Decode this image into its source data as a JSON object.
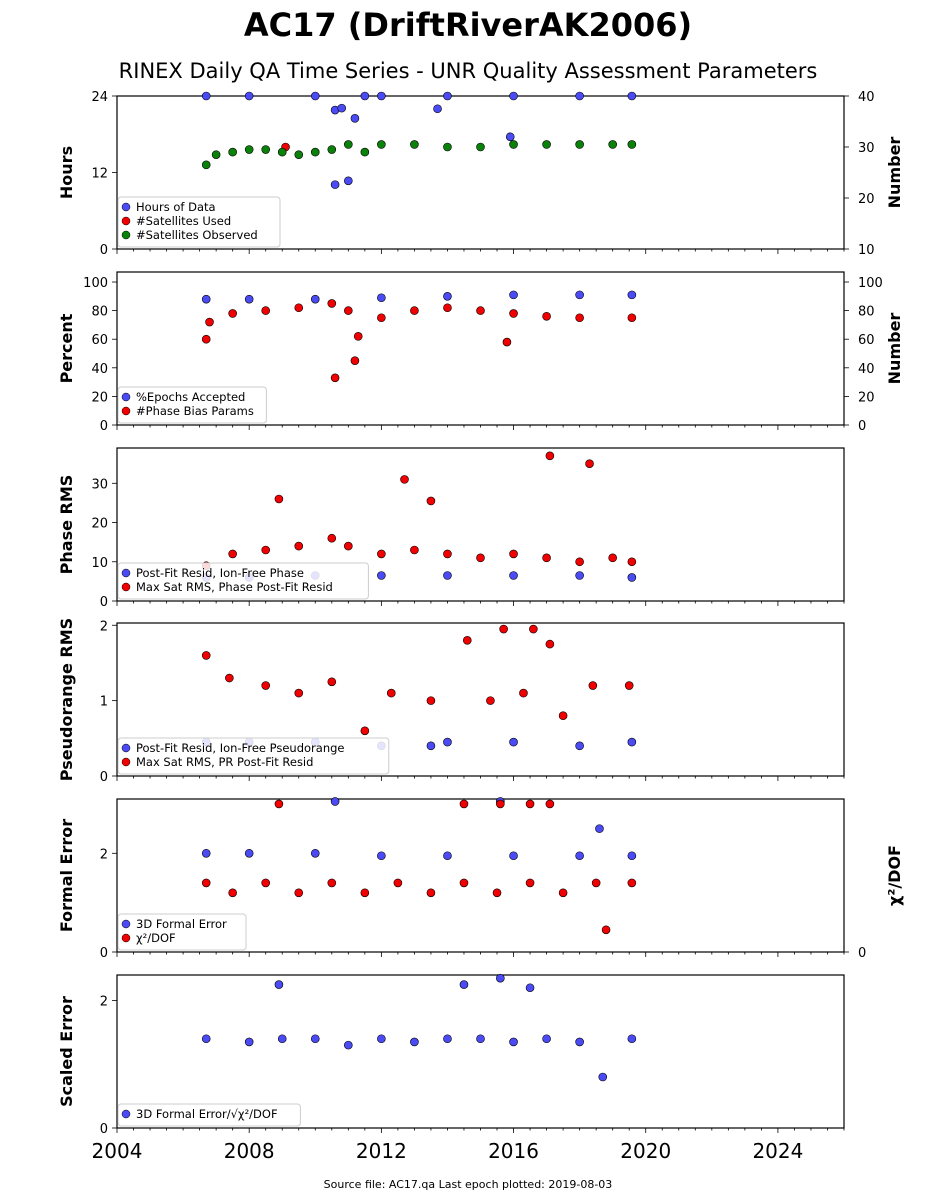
{
  "title": "AC17 (DriftRiverAK2006)",
  "subtitle": "RINEX Daily QA Time Series - UNR Quality Assessment Parameters",
  "footer": "Source file: AC17.qa Last epoch plotted: 2019-08-03",
  "colors": {
    "blue": "#4b4bf5",
    "red": "#f00000",
    "green": "#0a820a",
    "edge": "#000000"
  },
  "x_axis": {
    "range": [
      2004.0,
      2026.0
    ],
    "ticks": [
      "2004",
      "2008",
      "2012",
      "2016",
      "2020",
      "2024"
    ]
  },
  "chart_data": [
    {
      "type": "scatter",
      "ylabel": "Hours",
      "ylim": [
        0,
        24
      ],
      "yticks": [
        "0",
        "12",
        "24"
      ],
      "ylabel_right": "Number",
      "ylim_right": [
        10,
        40
      ],
      "yticks_right": [
        "10",
        "20",
        "30",
        "40"
      ],
      "legend_position": "lower-left",
      "series": [
        {
          "name": "Hours of Data",
          "color": "blue",
          "axis": "left",
          "x": [
            2006.7,
            2008.0,
            2010.0,
            2012.0,
            2014.0,
            2016.0,
            2018.0,
            2019.58,
            2010.6,
            2010.8,
            2011.2,
            2013.7,
            2010.6,
            2011.0,
            2015.9,
            2011.5
          ],
          "y": [
            24.0,
            24.0,
            24.0,
            24.0,
            24.0,
            24.0,
            24.0,
            24.0,
            21.8,
            22.1,
            20.5,
            22.0,
            10.1,
            10.7,
            17.6,
            24.0
          ]
        },
        {
          "name": "#Satellites Used",
          "color": "red",
          "axis": "right",
          "x": [
            2009.1
          ],
          "y": [
            30.0
          ]
        },
        {
          "name": "#Satellites Observed",
          "color": "green",
          "axis": "right",
          "x": [
            2006.7,
            2007.0,
            2007.5,
            2008.0,
            2008.5,
            2009.0,
            2009.5,
            2010.0,
            2010.5,
            2011.0,
            2011.5,
            2012.0,
            2013.0,
            2014.0,
            2015.0,
            2016.0,
            2017.0,
            2018.0,
            2019.0,
            2019.58
          ],
          "y": [
            26.5,
            28.5,
            29.0,
            29.5,
            29.5,
            29.0,
            28.5,
            29.0,
            29.5,
            30.5,
            29.0,
            30.5,
            30.5,
            30.0,
            30.0,
            30.5,
            30.5,
            30.5,
            30.5,
            30.5
          ]
        }
      ]
    },
    {
      "type": "scatter",
      "ylabel": "Percent",
      "ylim": [
        0,
        107
      ],
      "yticks": [
        "0",
        "20",
        "40",
        "60",
        "80",
        "100"
      ],
      "ylabel_right": "Number",
      "ylim_right": [
        0,
        107
      ],
      "yticks_right": [
        "0",
        "20",
        "40",
        "60",
        "80",
        "100"
      ],
      "legend_position": "lower-left",
      "series": [
        {
          "name": "%Epochs Accepted",
          "color": "blue",
          "axis": "left",
          "x": [
            2006.7,
            2008.0,
            2010.0,
            2012.0,
            2014.0,
            2016.0,
            2018.0,
            2019.58
          ],
          "y": [
            88,
            88,
            88,
            89,
            90,
            91,
            91,
            91
          ]
        },
        {
          "name": "#Phase Bias Params",
          "color": "red",
          "axis": "right",
          "x": [
            2006.7,
            2006.8,
            2007.5,
            2008.5,
            2009.5,
            2010.5,
            2011.0,
            2011.3,
            2012.0,
            2013.0,
            2014.0,
            2015.0,
            2016.0,
            2017.0,
            2018.0,
            2019.58,
            2010.6,
            2011.2,
            2015.8
          ],
          "y": [
            60,
            72,
            78,
            80,
            82,
            85,
            80,
            62,
            75,
            80,
            82,
            80,
            78,
            76,
            75,
            75,
            33,
            45,
            58
          ]
        }
      ]
    },
    {
      "type": "scatter",
      "ylabel": "Phase RMS",
      "ylim": [
        0,
        39
      ],
      "yticks": [
        "0",
        "10",
        "20",
        "30"
      ],
      "legend_position": "lower-left",
      "series": [
        {
          "name": "Post-Fit Resid, Ion-Free Phase",
          "color": "blue",
          "axis": "left",
          "x": [
            2006.7,
            2008.0,
            2010.0,
            2012.0,
            2014.0,
            2016.0,
            2018.0,
            2019.58
          ],
          "y": [
            6.0,
            6.0,
            6.5,
            6.5,
            6.5,
            6.5,
            6.5,
            6.0
          ]
        },
        {
          "name": "Max Sat RMS, Phase Post-Fit Resid",
          "color": "red",
          "axis": "left",
          "x": [
            2006.7,
            2007.5,
            2008.5,
            2009.5,
            2010.5,
            2011.0,
            2012.0,
            2013.0,
            2014.0,
            2015.0,
            2016.0,
            2017.0,
            2018.0,
            2019.0,
            2019.58,
            2017.1,
            2018.3,
            2012.7,
            2008.9,
            2013.5
          ],
          "y": [
            9,
            12,
            13,
            14,
            16,
            14,
            12,
            13,
            12,
            11,
            12,
            11,
            10,
            11,
            10,
            37,
            35,
            31,
            26,
            25.5
          ]
        }
      ]
    },
    {
      "type": "scatter",
      "ylabel": "Pseudorange RMS",
      "ylim": [
        0,
        2.03
      ],
      "yticks": [
        "0",
        "1",
        "2"
      ],
      "legend_position": "lower-left",
      "series": [
        {
          "name": "Post-Fit Resid, Ion-Free Pseudorange",
          "color": "blue",
          "axis": "left",
          "x": [
            2006.7,
            2008.0,
            2010.0,
            2012.0,
            2013.5,
            2014.0,
            2016.0,
            2018.0,
            2019.58
          ],
          "y": [
            0.45,
            0.45,
            0.45,
            0.4,
            0.4,
            0.45,
            0.45,
            0.4,
            0.45
          ]
        },
        {
          "name": "Max Sat RMS, PR Post-Fit Resid",
          "color": "red",
          "axis": "left",
          "x": [
            2006.7,
            2007.4,
            2008.5,
            2009.5,
            2010.5,
            2011.5,
            2012.3,
            2013.5,
            2014.6,
            2015.3,
            2015.7,
            2016.3,
            2016.6,
            2017.1,
            2017.5,
            2018.4,
            2019.5
          ],
          "y": [
            1.6,
            1.3,
            1.2,
            1.1,
            1.25,
            0.6,
            1.1,
            1.0,
            1.8,
            1.0,
            1.95,
            1.1,
            1.95,
            1.75,
            0.8,
            1.2,
            1.2
          ]
        }
      ]
    },
    {
      "type": "scatter",
      "ylabel": "Formal Error",
      "ylim": [
        0,
        3.1
      ],
      "yticks": [
        "0",
        "2"
      ],
      "ylabel_right": "χ²/DOF",
      "ylim_right": [
        0,
        3.1
      ],
      "yticks_right": [
        "0"
      ],
      "legend_position": "lower-left",
      "series": [
        {
          "name": "3D Formal Error",
          "color": "blue",
          "axis": "left",
          "x": [
            2006.7,
            2008.0,
            2010.0,
            2012.0,
            2014.0,
            2016.0,
            2018.0,
            2019.58,
            2010.6,
            2015.6,
            2018.6
          ],
          "y": [
            2.0,
            2.0,
            2.0,
            1.95,
            1.95,
            1.95,
            1.95,
            1.95,
            3.05,
            3.05,
            2.5
          ]
        },
        {
          "name": "χ²/DOF",
          "color": "red",
          "axis": "right",
          "x": [
            2006.7,
            2007.5,
            2008.5,
            2009.5,
            2010.5,
            2011.5,
            2012.5,
            2013.5,
            2014.5,
            2015.5,
            2016.5,
            2017.5,
            2018.5,
            2019.58,
            2008.9,
            2014.5,
            2015.6,
            2016.5,
            2017.1,
            2018.8
          ],
          "y": [
            1.4,
            1.2,
            1.4,
            1.2,
            1.4,
            1.2,
            1.4,
            1.2,
            1.4,
            1.2,
            1.4,
            1.2,
            1.4,
            1.4,
            3.0,
            3.0,
            3.0,
            3.0,
            3.0,
            0.45
          ]
        }
      ]
    },
    {
      "type": "scatter",
      "ylabel": "Scaled Error",
      "ylim": [
        0,
        2.4
      ],
      "yticks": [
        "0",
        "2"
      ],
      "legend_position": "lower-left",
      "series": [
        {
          "name": "3D Formal Error/√χ²/DOF",
          "color": "blue",
          "axis": "left",
          "x": [
            2006.7,
            2008.0,
            2009.0,
            2010.0,
            2011.0,
            2012.0,
            2013.0,
            2014.0,
            2015.0,
            2016.0,
            2017.0,
            2018.0,
            2019.58,
            2008.9,
            2014.5,
            2015.6,
            2016.5,
            2018.7
          ],
          "y": [
            1.4,
            1.35,
            1.4,
            1.4,
            1.3,
            1.4,
            1.35,
            1.4,
            1.4,
            1.35,
            1.4,
            1.35,
            1.4,
            2.25,
            2.25,
            2.35,
            2.2,
            0.8
          ]
        }
      ]
    }
  ]
}
